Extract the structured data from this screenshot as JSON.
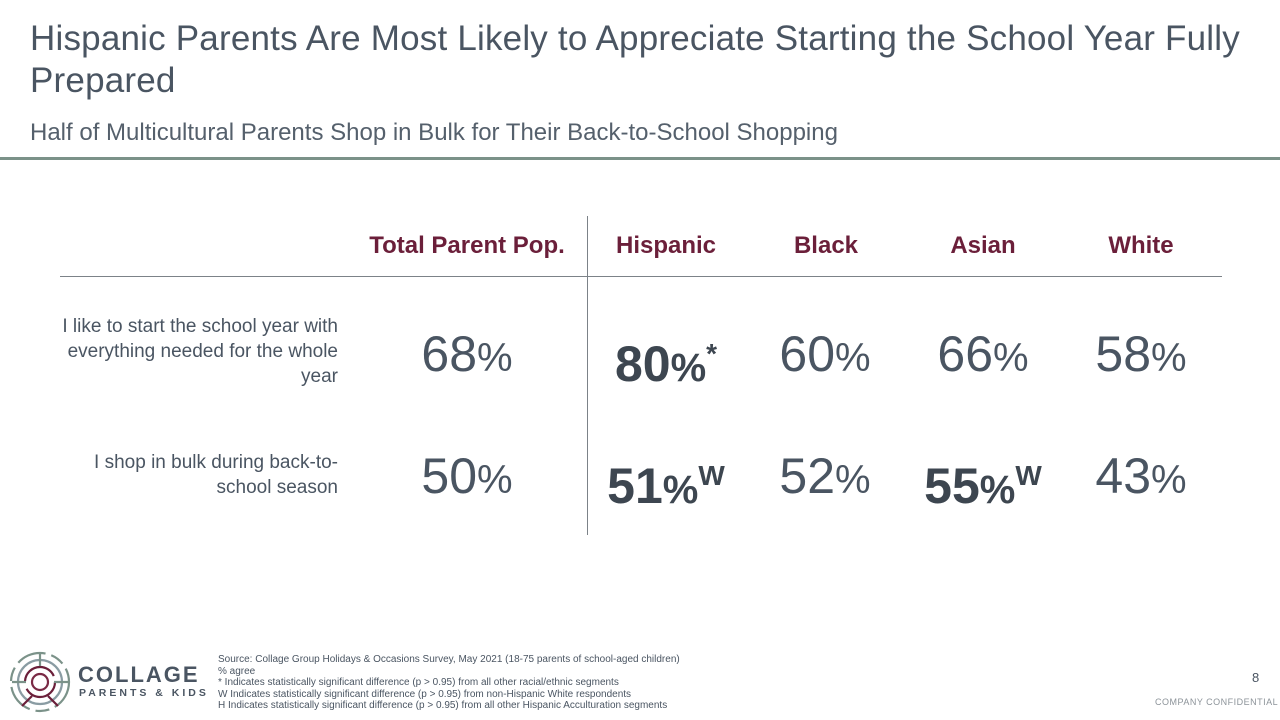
{
  "slide": {
    "title": "Hispanic Parents Are Most Likely to Appreciate Starting the School Year Fully Prepared",
    "subtitle": "Half of Multicultural Parents Shop in Bulk for Their Back-to-School Shopping",
    "page_number": "8",
    "confidential": "COMPANY CONFIDENTIAL"
  },
  "table": {
    "columns": [
      "Total Parent Pop.",
      "Hispanic",
      "Black",
      "Asian",
      "White"
    ],
    "rows": [
      {
        "label": "I like to start the school year with everything needed for the whole year",
        "cells": [
          {
            "num": "68",
            "pct": "%",
            "mark": "",
            "bold": false
          },
          {
            "num": "80",
            "pct": "%",
            "mark": "*",
            "bold": true
          },
          {
            "num": "60",
            "pct": "%",
            "mark": "",
            "bold": false
          },
          {
            "num": "66",
            "pct": "%",
            "mark": "",
            "bold": false
          },
          {
            "num": "58",
            "pct": "%",
            "mark": "",
            "bold": false
          }
        ]
      },
      {
        "label": "I shop in bulk during back-to-school season",
        "cells": [
          {
            "num": "50",
            "pct": "%",
            "mark": "",
            "bold": false
          },
          {
            "num": "51",
            "pct": "%",
            "mark": "W",
            "bold": true
          },
          {
            "num": "52",
            "pct": "%",
            "mark": "",
            "bold": false
          },
          {
            "num": "55",
            "pct": "%",
            "mark": "W",
            "bold": true
          },
          {
            "num": "43",
            "pct": "%",
            "mark": "",
            "bold": false
          }
        ]
      }
    ],
    "header_color": "#6b1f3a"
  },
  "footer": {
    "logo_word": "COLLAGE",
    "logo_sub": "PARENTS & KIDS",
    "notes": [
      "Source: Collage Group Holidays & Occasions Survey, May 2021 (18-75 parents of school-aged children)",
      "% agree",
      "* Indicates statistically significant difference (p > 0.95) from all other racial/ethnic segments",
      "W Indicates statistically significant difference (p > 0.95) from non-Hispanic White respondents",
      "H Indicates statistically significant difference (p > 0.95) from all other Hispanic Acculturation segments"
    ]
  }
}
